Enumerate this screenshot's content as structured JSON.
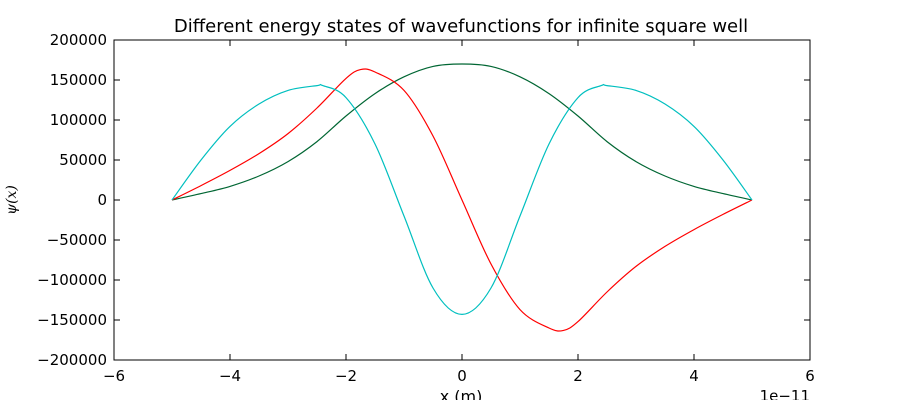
{
  "chart_data": {
    "type": "line",
    "title": "Different energy states of wavefunctions for infinite square well",
    "xlabel": "x (m)",
    "ylabel": "ψ(x)",
    "x_offset_label": "1e−11",
    "xlim": [
      -6,
      6
    ],
    "ylim": [
      -200000,
      200000
    ],
    "xticks": [
      -6,
      -4,
      -2,
      0,
      2,
      4,
      6
    ],
    "xtick_labels": [
      "−6",
      "−4",
      "−2",
      "0",
      "2",
      "4",
      "6"
    ],
    "yticks": [
      -200000,
      -150000,
      -100000,
      -50000,
      0,
      50000,
      100000,
      150000,
      200000
    ],
    "ytick_labels": [
      "−200000",
      "−150000",
      "−100000",
      "−50000",
      "0",
      "50000",
      "100000",
      "150000",
      "200000"
    ],
    "grid": false,
    "series": [
      {
        "color": "#006633",
        "x": [
          -5,
          -4.5,
          -4,
          -3.5,
          -3,
          -2.5,
          -2,
          -1.5,
          -1,
          -0.5,
          0,
          0.5,
          1,
          1.5,
          2,
          2.5,
          3,
          3.5,
          4,
          4.5,
          5
        ],
        "y": [
          0,
          8000,
          17000,
          30000,
          48000,
          73000,
          105000,
          133000,
          154000,
          167000,
          170000,
          167000,
          154000,
          133000,
          105000,
          73000,
          48000,
          30000,
          17000,
          8000,
          0
        ]
      },
      {
        "color": "#ff0000",
        "x": [
          -5,
          -4.5,
          -4,
          -3.5,
          -3,
          -2.5,
          -2,
          -1.75,
          -1.5,
          -1,
          -0.5,
          0,
          0.5,
          1,
          1.5,
          1.75,
          2,
          2.5,
          3,
          3.5,
          4,
          4.5,
          5
        ],
        "y": [
          0,
          18000,
          37000,
          58000,
          83000,
          115000,
          152000,
          163000,
          160000,
          137000,
          80000,
          0,
          -80000,
          -137000,
          -160000,
          -163000,
          -152000,
          -115000,
          -83000,
          -58000,
          -37000,
          -18000,
          0
        ]
      },
      {
        "color": "#00bfbf",
        "x": [
          -5,
          -4.5,
          -4,
          -3.5,
          -3,
          -2.5,
          -2.4,
          -2,
          -1.5,
          -1,
          -0.5,
          0,
          0.5,
          1,
          1.5,
          2,
          2.4,
          2.5,
          3,
          3.5,
          4,
          4.5,
          5
        ],
        "y": [
          0,
          50000,
          92000,
          120000,
          137000,
          143000,
          143000,
          128000,
          70000,
          -20000,
          -110000,
          -143000,
          -110000,
          -20000,
          70000,
          128000,
          143000,
          143000,
          137000,
          120000,
          92000,
          50000,
          0
        ]
      }
    ]
  }
}
